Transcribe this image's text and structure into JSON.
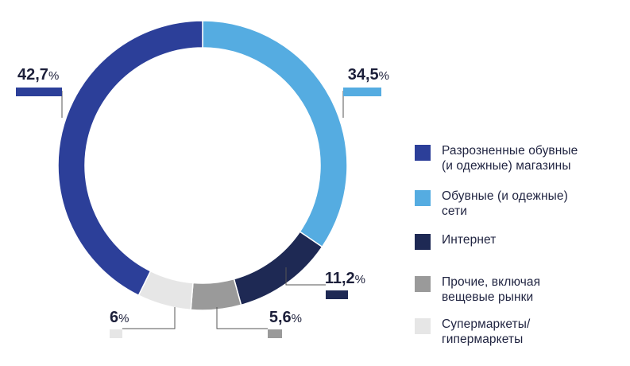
{
  "chart_data": {
    "type": "pie",
    "donut": true,
    "slices": [
      {
        "label": "Разрозненные обувные (и одежные) магазины",
        "value": 42.7,
        "value_label": "42,7",
        "color": "#2c3f99"
      },
      {
        "label": "Обувные (и одежные) сети",
        "value": 34.5,
        "value_label": "34,5",
        "color": "#55ace1"
      },
      {
        "label": "Интернет",
        "value": 11.2,
        "value_label": "11,2",
        "color": "#1e2954"
      },
      {
        "label": "Прочие, включая вещевые рынки",
        "value": 5.6,
        "value_label": "5,6",
        "color": "#9a9a9a"
      },
      {
        "label": "Супермаркеты/ гипермаркеты",
        "value": 6,
        "value_label": "6",
        "color": "#e6e6e6"
      }
    ],
    "percent_sign": "%",
    "legend_position": "right"
  },
  "legend": [
    {
      "line1": "Разрозненные обувные",
      "line2": "(и одежные) магазины"
    },
    {
      "line1": "Обувные (и одежные)",
      "line2": "сети"
    },
    {
      "line1": "Интернет",
      "line2": ""
    },
    {
      "line1": "Прочие, включая",
      "line2": "вещевые рынки"
    },
    {
      "line1": "Супермаркеты/",
      "line2": "гипермаркеты"
    }
  ]
}
